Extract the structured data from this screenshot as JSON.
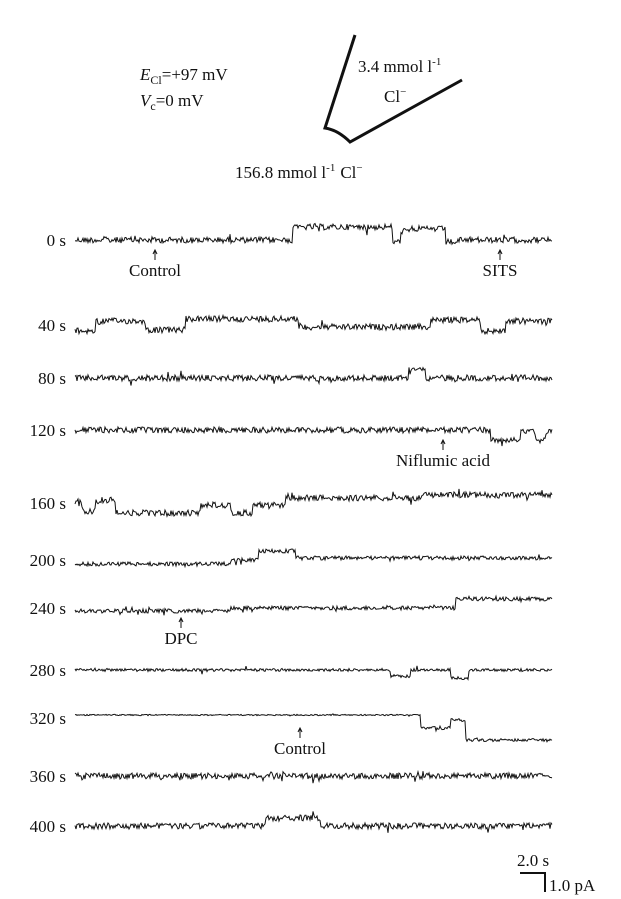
{
  "header": {
    "e_cl": {
      "symbol": "E",
      "subscript": "Cl",
      "value": "=+97 mV"
    },
    "v_c": {
      "symbol": "V",
      "subscript": "c",
      "value": "=0 mV"
    }
  },
  "pipette": {
    "inside": {
      "text": "3.4 mmol l",
      "sup": "-1",
      "ion": "Cl",
      "ion_sup": "−"
    },
    "bath": {
      "text": "156.8 mmol l",
      "sup": "-1",
      "ion": "Cl",
      "ion_sup": "−"
    }
  },
  "traces": [
    {
      "label": "0 s",
      "annotations": [
        "Control",
        "SITS"
      ]
    },
    {
      "label": "40 s",
      "annotations": []
    },
    {
      "label": "80 s",
      "annotations": []
    },
    {
      "label": "120 s",
      "annotations": [
        "Niflumic acid"
      ]
    },
    {
      "label": "160 s",
      "annotations": []
    },
    {
      "label": "200 s",
      "annotations": []
    },
    {
      "label": "240 s",
      "annotations": [
        "DPC"
      ]
    },
    {
      "label": "280 s",
      "annotations": []
    },
    {
      "label": "320 s",
      "annotations": [
        "Control"
      ]
    },
    {
      "label": "360 s",
      "annotations": []
    },
    {
      "label": "400 s",
      "annotations": []
    }
  ],
  "scale_bar": {
    "time": "2.0 s",
    "current": "1.0 pA"
  }
}
